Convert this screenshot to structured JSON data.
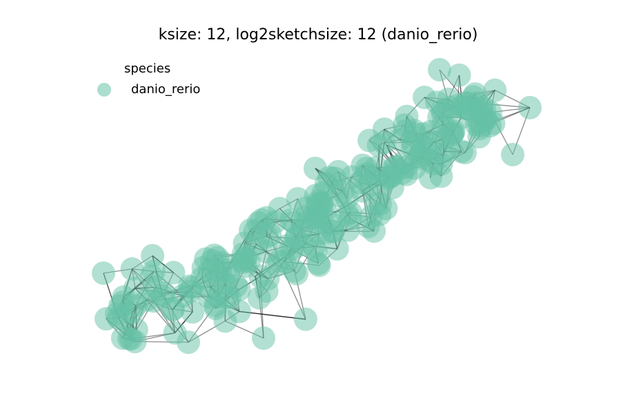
{
  "title": "ksize: 12, log2sketchsize: 12 (danio_rerio)",
  "legend": {
    "title": "species",
    "items": [
      {
        "label": "danio_rerio",
        "color": "#66c2a5"
      }
    ]
  },
  "colors": {
    "node": "#66c2a5",
    "edge": "#000000",
    "background": "#ffffff"
  }
}
